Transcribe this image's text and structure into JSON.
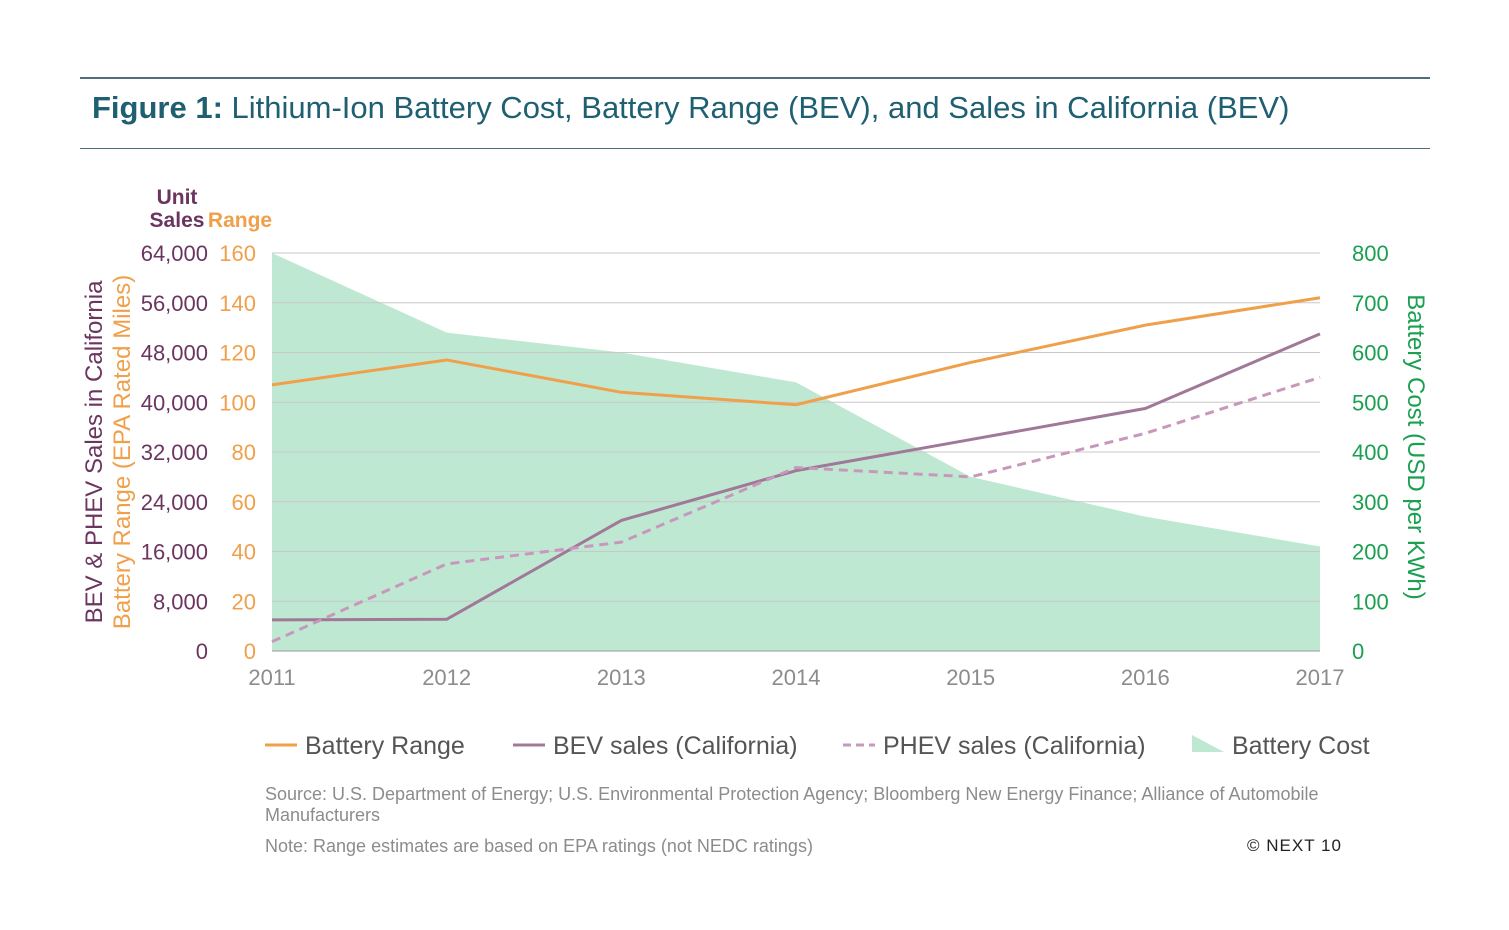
{
  "header": {
    "title_lead": "Figure 1:",
    "title_rest": " Lithium-Ion Battery Cost, Battery Range (BEV), and Sales in California (BEV)"
  },
  "chart_data": {
    "type": "line",
    "title": "Figure 1: Lithium-Ion Battery Cost, Battery Range (BEV), and Sales in California (BEV)",
    "x": [
      2011,
      2012,
      2013,
      2014,
      2015,
      2016,
      2017
    ],
    "x_tick_labels": [
      "2011",
      "2012",
      "2013",
      "2014",
      "2015",
      "2016",
      "2017"
    ],
    "axes": {
      "sales": {
        "label": "BEV & PHEV Sales in California",
        "header_line1": "Unit",
        "header_line2": "Sales",
        "range": [
          0,
          64000
        ],
        "ticks": [
          "0",
          "8,000",
          "16,000",
          "24,000",
          "32,000",
          "40,000",
          "48,000",
          "56,000",
          "64,000"
        ],
        "color": "#6b3560"
      },
      "range": {
        "label": "Battery Range (EPA Rated Miles)",
        "header": "Range",
        "range": [
          0,
          160
        ],
        "ticks": [
          "0",
          "20",
          "40",
          "60",
          "80",
          "100",
          "120",
          "140",
          "160"
        ],
        "color": "#f0a04b"
      },
      "cost": {
        "label": "Battery Cost (USD per KWh)",
        "range": [
          0,
          800
        ],
        "ticks": [
          "0",
          "100",
          "200",
          "300",
          "400",
          "500",
          "600",
          "700",
          "800"
        ],
        "color": "#1aa050"
      }
    },
    "series": [
      {
        "name": "Battery Range",
        "axis": "range",
        "style": "line",
        "color": "#f0a04b",
        "values": [
          107,
          117,
          104,
          99,
          116,
          131,
          142
        ]
      },
      {
        "name": "BEV sales (California)",
        "axis": "sales",
        "style": "line",
        "color": "#a07898",
        "values": [
          5000,
          5100,
          21000,
          29000,
          34000,
          39000,
          51000
        ]
      },
      {
        "name": "PHEV sales (California)",
        "axis": "sales",
        "style": "dashed",
        "color": "#c898bc",
        "values": [
          1500,
          14000,
          17500,
          29500,
          28000,
          35000,
          44000
        ]
      },
      {
        "name": "Battery Cost",
        "axis": "cost",
        "style": "area",
        "color": "#bfe8d3",
        "values": [
          800,
          640,
          600,
          540,
          350,
          270,
          210
        ]
      }
    ],
    "grid": true,
    "legend_position": "bottom"
  },
  "footer": {
    "source": "Source: U.S. Department of Energy; U.S. Environmental Protection Agency; Bloomberg New Energy Finance; Alliance of Automobile Manufacturers",
    "note": "Note: Range estimates are based on EPA ratings (not NEDC ratings)",
    "copyright": "© NEXT 10"
  }
}
